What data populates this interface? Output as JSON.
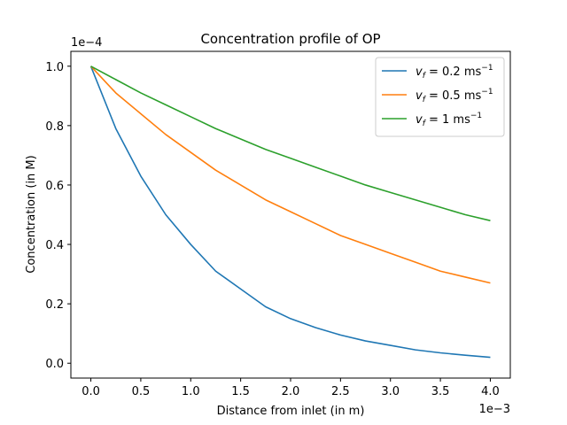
{
  "chart_data": {
    "type": "line",
    "title": "Concentration profile of OP",
    "xlabel": "Distance from inlet (in m)",
    "ylabel": "Concentration (in M)",
    "x_offset_label": "1e−3",
    "y_offset_label": "1e−4",
    "xlim": [
      -0.2,
      4.2
    ],
    "ylim": [
      -0.05,
      1.05
    ],
    "x_ticks": [
      0.0,
      0.5,
      1.0,
      1.5,
      2.0,
      2.5,
      3.0,
      3.5,
      4.0
    ],
    "x_tick_labels": [
      "0.0",
      "0.5",
      "1.0",
      "1.5",
      "2.0",
      "2.5",
      "3.0",
      "3.5",
      "4.0"
    ],
    "y_ticks": [
      0.0,
      0.2,
      0.4,
      0.6,
      0.8,
      1.0
    ],
    "y_tick_labels": [
      "0.0",
      "0.2",
      "0.4",
      "0.6",
      "0.8",
      "1.0"
    ],
    "grid": false,
    "legend_position": "top-right",
    "x": [
      0.0,
      0.25,
      0.5,
      0.75,
      1.0,
      1.25,
      1.5,
      1.75,
      2.0,
      2.25,
      2.5,
      2.75,
      3.0,
      3.25,
      3.5,
      3.75,
      4.0
    ],
    "series": [
      {
        "name": "v_f = 0.2 ms^-1",
        "legend_main": "v",
        "legend_sub": "f",
        "legend_mid": " = 0.2 ms",
        "legend_sup": "−1",
        "color": "#1f77b4",
        "values": [
          1.0,
          0.79,
          0.63,
          0.5,
          0.4,
          0.31,
          0.25,
          0.19,
          0.15,
          0.12,
          0.095,
          0.075,
          0.06,
          0.045,
          0.035,
          0.027,
          0.02
        ]
      },
      {
        "name": "v_f = 0.5 ms^-1",
        "legend_main": "v",
        "legend_sub": "f",
        "legend_mid": " = 0.5 ms",
        "legend_sup": "−1",
        "color": "#ff7f0e",
        "values": [
          1.0,
          0.91,
          0.84,
          0.77,
          0.71,
          0.65,
          0.6,
          0.55,
          0.51,
          0.47,
          0.43,
          0.4,
          0.37,
          0.34,
          0.31,
          0.29,
          0.27
        ]
      },
      {
        "name": "v_f = 1 ms^-1",
        "legend_main": "v",
        "legend_sub": "f",
        "legend_mid": " = 1 ms",
        "legend_sup": "−1",
        "color": "#2ca02c",
        "values": [
          1.0,
          0.955,
          0.91,
          0.87,
          0.83,
          0.79,
          0.755,
          0.72,
          0.69,
          0.66,
          0.63,
          0.6,
          0.575,
          0.55,
          0.525,
          0.5,
          0.48
        ]
      }
    ]
  }
}
